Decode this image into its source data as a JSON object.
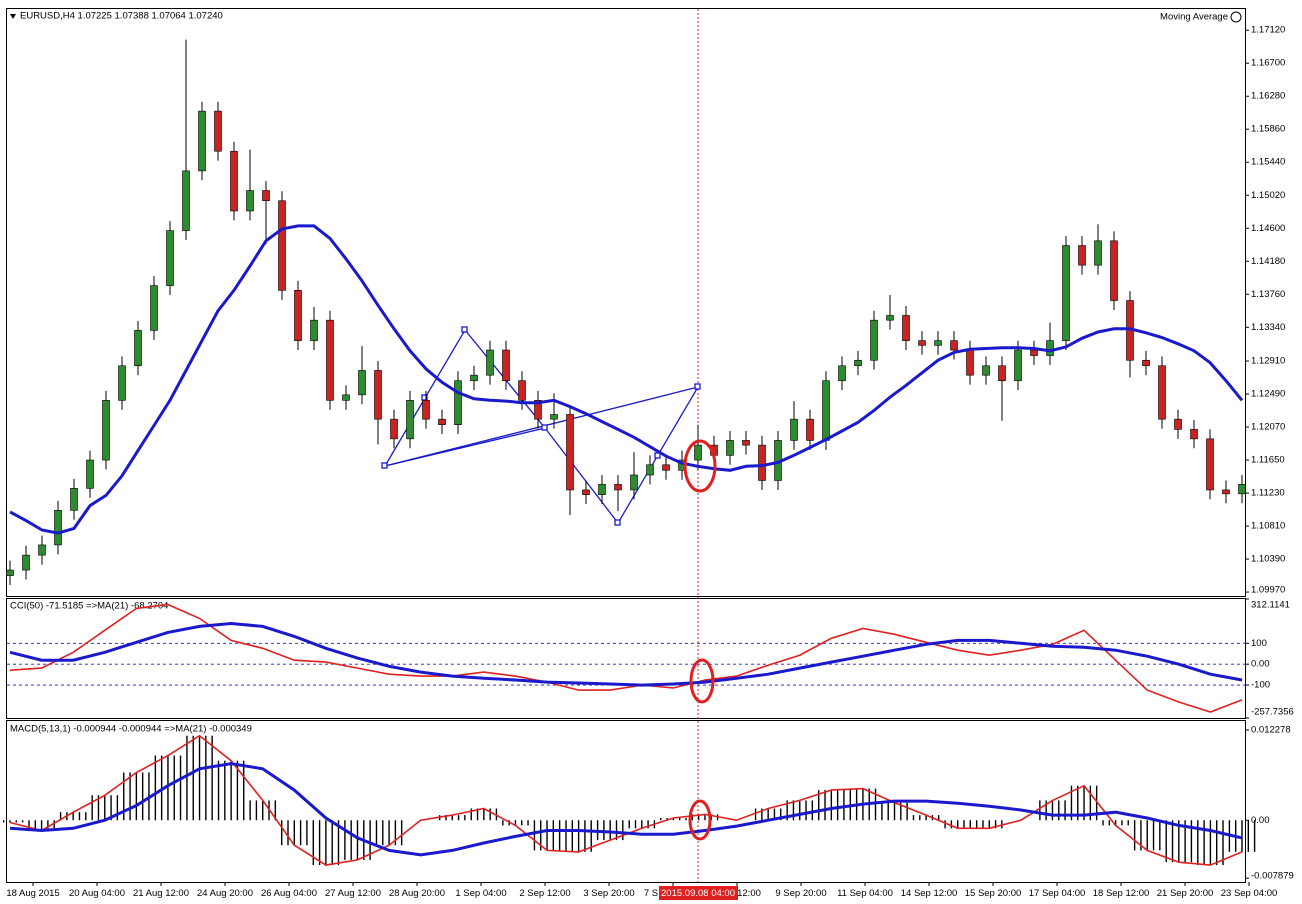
{
  "chart_data": [
    {
      "type": "candlestick",
      "title": "EURUSD,H4  1.07225 1.07388 1.07064 1.07240",
      "up_color": "#2e8b2e",
      "down_color": "#cc2222",
      "open": [
        1.1018,
        1.1025,
        1.1044,
        1.1057,
        1.1101,
        1.1129,
        1.1165,
        1.1241,
        1.1285,
        1.133,
        1.1387,
        1.1457,
        1.1533,
        1.1609,
        1.1558,
        1.1482,
        1.1508,
        1.1495,
        1.1381,
        1.1317,
        1.1343,
        1.1241,
        1.1248,
        1.1279,
        1.1217,
        1.1192,
        1.1241,
        1.1217,
        1.121,
        1.1266,
        1.1273,
        1.1305,
        1.1266,
        1.1241,
        1.1217,
        1.1223,
        1.1127,
        1.1121,
        1.1134,
        1.1127,
        1.1146,
        1.1159,
        1.1152,
        1.1165,
        1.1184,
        1.1171,
        1.119,
        1.1184,
        1.1139,
        1.119,
        1.1217,
        1.119,
        1.1266,
        1.1285,
        1.1292,
        1.1343,
        1.1349,
        1.1317,
        1.1311,
        1.1317,
        1.1305,
        1.1273,
        1.1285,
        1.1266,
        1.1305,
        1.1298,
        1.1317,
        1.1438,
        1.1413,
        1.1444,
        1.1368,
        1.1292,
        1.1285,
        1.1217,
        1.1204,
        1.1192,
        1.1127,
        1.1122
      ],
      "high": [
        1.1037,
        1.1056,
        1.1069,
        1.1113,
        1.1141,
        1.1177,
        1.1253,
        1.1297,
        1.1342,
        1.1399,
        1.1469,
        1.17,
        1.1621,
        1.1621,
        1.157,
        1.156,
        1.152,
        1.1507,
        1.1393,
        1.136,
        1.1355,
        1.126,
        1.131,
        1.1291,
        1.1229,
        1.1253,
        1.1253,
        1.1229,
        1.1278,
        1.1285,
        1.1317,
        1.1317,
        1.1278,
        1.1253,
        1.125,
        1.1235,
        1.1139,
        1.1146,
        1.1146,
        1.1175,
        1.1171,
        1.1171,
        1.1177,
        1.121,
        1.1196,
        1.1202,
        1.1202,
        1.1196,
        1.1202,
        1.124,
        1.1229,
        1.1278,
        1.1297,
        1.1304,
        1.1355,
        1.1375,
        1.1361,
        1.1329,
        1.1329,
        1.1329,
        1.1317,
        1.1297,
        1.1297,
        1.1317,
        1.1317,
        1.134,
        1.145,
        1.145,
        1.1465,
        1.1456,
        1.138,
        1.1304,
        1.1297,
        1.1229,
        1.1216,
        1.1204,
        1.1139,
        1.1146
      ],
      "low": [
        1.1006,
        1.1013,
        1.1032,
        1.1045,
        1.1089,
        1.1117,
        1.1153,
        1.1229,
        1.1273,
        1.1318,
        1.1375,
        1.1445,
        1.1521,
        1.1546,
        1.147,
        1.147,
        1.144,
        1.1369,
        1.1305,
        1.1305,
        1.1229,
        1.1229,
        1.1236,
        1.1185,
        1.118,
        1.118,
        1.1205,
        1.1198,
        1.1198,
        1.1254,
        1.1261,
        1.1254,
        1.1229,
        1.1205,
        1.1205,
        1.1095,
        1.1109,
        1.1109,
        1.11,
        1.1115,
        1.1134,
        1.114,
        1.114,
        1.1153,
        1.1159,
        1.1159,
        1.1172,
        1.1127,
        1.1127,
        1.1178,
        1.1178,
        1.1178,
        1.1254,
        1.1273,
        1.128,
        1.1331,
        1.1305,
        1.1299,
        1.1299,
        1.1293,
        1.1261,
        1.1261,
        1.1215,
        1.1254,
        1.1286,
        1.1286,
        1.1305,
        1.1401,
        1.1401,
        1.1356,
        1.127,
        1.1273,
        1.1205,
        1.1192,
        1.118,
        1.1115,
        1.111,
        1.111
      ],
      "close": [
        1.1025,
        1.1044,
        1.1057,
        1.1101,
        1.1129,
        1.1165,
        1.1241,
        1.1285,
        1.133,
        1.1387,
        1.1457,
        1.1533,
        1.1609,
        1.1558,
        1.1482,
        1.1508,
        1.1495,
        1.1381,
        1.1317,
        1.1343,
        1.1241,
        1.1248,
        1.1279,
        1.1217,
        1.1192,
        1.1241,
        1.1217,
        1.121,
        1.1266,
        1.1273,
        1.1305,
        1.1266,
        1.1241,
        1.1217,
        1.1223,
        1.1127,
        1.1121,
        1.1134,
        1.1127,
        1.1146,
        1.1159,
        1.1152,
        1.1165,
        1.1184,
        1.1171,
        1.119,
        1.1184,
        1.1139,
        1.119,
        1.1217,
        1.119,
        1.1266,
        1.1285,
        1.1292,
        1.1343,
        1.1349,
        1.1317,
        1.1311,
        1.1317,
        1.1305,
        1.1273,
        1.1285,
        1.1266,
        1.1305,
        1.1298,
        1.1317,
        1.1438,
        1.1413,
        1.1444,
        1.1368,
        1.1292,
        1.1285,
        1.1217,
        1.1204,
        1.1192,
        1.1127,
        1.1122,
        1.1134
      ],
      "overlay": {
        "name": "Moving Average",
        "color": "#1a1acc",
        "values": [
          1.1099,
          1.1088,
          1.1076,
          1.1072,
          1.1078,
          1.1107,
          1.112,
          1.1145,
          1.1177,
          1.1209,
          1.1241,
          1.1279,
          1.1317,
          1.1355,
          1.1381,
          1.1412,
          1.1444,
          1.1459,
          1.1463,
          1.1463,
          1.1447,
          1.1421,
          1.1393,
          1.1362,
          1.1332,
          1.1304,
          1.1281,
          1.1264,
          1.1251,
          1.1243,
          1.1241,
          1.124,
          1.1238,
          1.1238,
          1.1241,
          1.1233,
          1.1224,
          1.1214,
          1.1204,
          1.1194,
          1.1182,
          1.117,
          1.1161,
          1.1157,
          1.1154,
          1.1152,
          1.1157,
          1.1158,
          1.1162,
          1.1171,
          1.1181,
          1.1191,
          1.1202,
          1.1213,
          1.1228,
          1.1245,
          1.126,
          1.1276,
          1.1292,
          1.1302,
          1.1306,
          1.1307,
          1.1308,
          1.1308,
          1.1307,
          1.1304,
          1.1309,
          1.132,
          1.1328,
          1.1332,
          1.1332,
          1.1327,
          1.1321,
          1.1313,
          1.1304,
          1.1289,
          1.1266,
          1.1241
        ]
      },
      "ylim": [
        1.0992,
        1.1739
      ],
      "yticks": [
        {
          "value": 1.1712,
          "label": "1.17120"
        },
        {
          "value": 1.167,
          "label": "1.16700"
        },
        {
          "value": 1.1628,
          "label": "1.16280"
        },
        {
          "value": 1.1586,
          "label": "1.15860"
        },
        {
          "value": 1.1544,
          "label": "1.15440"
        },
        {
          "value": 1.1502,
          "label": "1.15020"
        },
        {
          "value": 1.146,
          "label": "1.14600"
        },
        {
          "value": 1.1418,
          "label": "1.14180"
        },
        {
          "value": 1.1376,
          "label": "1.13760"
        },
        {
          "value": 1.1334,
          "label": "1.13340"
        },
        {
          "value": 1.1291,
          "label": "1.12910"
        },
        {
          "value": 1.1249,
          "label": "1.12490"
        },
        {
          "value": 1.1207,
          "label": "1.12070"
        },
        {
          "value": 1.1165,
          "label": "1.11650"
        },
        {
          "value": 1.1123,
          "label": "1.11230"
        },
        {
          "value": 1.1081,
          "label": "1.10810"
        },
        {
          "value": 1.1039,
          "label": "1.10390"
        },
        {
          "value": 1.0997,
          "label": "1.09970"
        }
      ]
    },
    {
      "type": "line",
      "title": "CCI(50) -71.5185  =>MA(21) -68.2704",
      "series": [
        {
          "color": "#e02020",
          "values": [
            -29,
            -19,
            57,
            162,
            267,
            286,
            219,
            114,
            76,
            19,
            10,
            -19,
            -48,
            -57,
            -57,
            -38,
            -57,
            -86,
            -124,
            -124,
            -100,
            -114,
            -76,
            -57,
            -5,
            43,
            124,
            171,
            143,
            105,
            67,
            43,
            67,
            95,
            162,
            19,
            -124,
            -181,
            -229,
            -171
          ]
        },
        {
          "color": "#1a1acc",
          "values": [
            57,
            19,
            19,
            57,
            105,
            152,
            181,
            195,
            181,
            133,
            76,
            29,
            -10,
            -38,
            -57,
            -67,
            -76,
            -86,
            -90,
            -95,
            -100,
            -95,
            -86,
            -67,
            -48,
            -19,
            10,
            38,
            67,
            95,
            114,
            114,
            100,
            86,
            81,
            67,
            38,
            0,
            -48,
            -76
          ]
        }
      ],
      "ylim": [
        -257.7356,
        312.1141
      ],
      "yticks": [
        -257.7356,
        {
          "value": 0,
          "label": "0.00"
        },
        -100,
        100,
        312.1141
      ],
      "level_lines": [
        100,
        0,
        -100
      ]
    },
    {
      "type": "macd",
      "title": "MACD(5,13,1) -0.000944 -0.000944  =>MA(21) -0.000349",
      "histogram": {
        "color": "#000000",
        "outline": "#e02020",
        "values": [
          -0.0003,
          -0.0014,
          0.0011,
          0.0034,
          0.0065,
          0.0088,
          0.0115,
          0.0081,
          0.0027,
          -0.0034,
          -0.0061,
          -0.0054,
          -0.0034,
          0.0,
          0.0007,
          0.0016,
          -0.0007,
          -0.0041,
          -0.0043,
          -0.0027,
          -0.0011,
          0.0003,
          0.0008,
          0.0,
          0.0016,
          0.0027,
          0.0041,
          0.0043,
          0.0024,
          0.0007,
          -0.0011,
          -0.0011,
          0.0,
          0.0027,
          0.0047,
          -0.0007,
          -0.0041,
          -0.0057,
          -0.0061,
          -0.0043
        ]
      },
      "signal": {
        "color": "#1a1acc",
        "values": [
          -0.0011,
          -0.0014,
          -0.0011,
          0.0,
          0.002,
          0.0047,
          0.007,
          0.0077,
          0.007,
          0.0041,
          0.0003,
          -0.0024,
          -0.0041,
          -0.0047,
          -0.0041,
          -0.0031,
          -0.0022,
          -0.0014,
          -0.0014,
          -0.0016,
          -0.0019,
          -0.0019,
          -0.0014,
          -0.0008,
          0.0,
          0.0008,
          0.0016,
          0.0022,
          0.0026,
          0.0026,
          0.0023,
          0.0019,
          0.0014,
          0.0007,
          0.0007,
          0.0011,
          0.0003,
          -0.0007,
          -0.0014,
          -0.0024
        ]
      },
      "ylim": [
        -0.0084,
        0.0135
      ],
      "yticks": [
        0.012278,
        {
          "value": 0,
          "label": "0.00"
        },
        -0.007879
      ]
    }
  ],
  "x_axis": {
    "labels": [
      "18 Aug 2015",
      "20 Aug 04:00",
      "21 Aug 12:00",
      "24 Aug 20:00",
      "26 Aug 04:00",
      "27 Aug 12:00",
      "28 Aug 20:00",
      "1 Sep 04:00",
      "2 Sep 12:00",
      "3 Sep 20:00",
      "7 S",
      "12:00",
      "9 Sep 20:00",
      "11 Sep 04:00",
      "14 Sep 12:00",
      "15 Sep 20:00",
      "17 Sep 04:00",
      "18 Sep 12:00",
      "21 Sep 20:00",
      "23 Sep 04:00"
    ],
    "cursor_label": "2015.09.08 04:00"
  },
  "indicator_name": "Moving Average"
}
